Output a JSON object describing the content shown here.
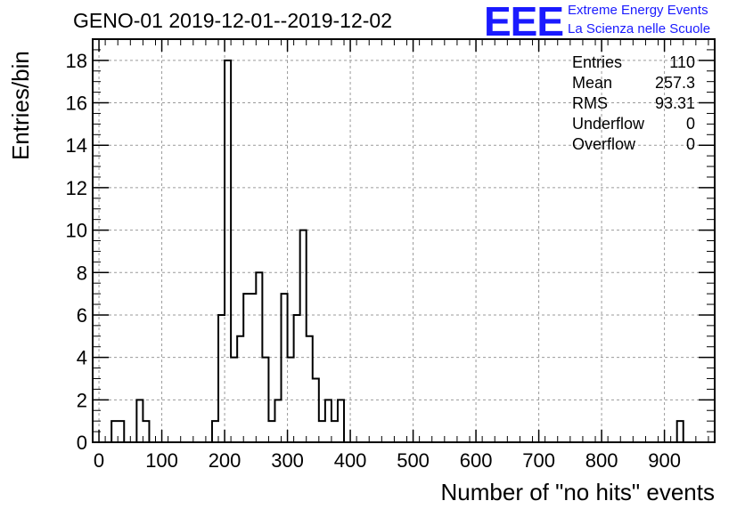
{
  "title": "GENO-01 2019-12-01--2019-12-02",
  "logo": {
    "mark": "EEE",
    "line1": "Extreme Energy Events",
    "line2": "La Scienza nelle Scuole"
  },
  "stats": [
    {
      "label": "Entries",
      "value": "110"
    },
    {
      "label": "Mean",
      "value": "257.3"
    },
    {
      "label": "RMS",
      "value": "93.31"
    },
    {
      "label": "Underflow",
      "value": "0"
    },
    {
      "label": "Overflow",
      "value": "0"
    }
  ],
  "chart_data": {
    "type": "bar",
    "subtype": "step-histogram",
    "title": "GENO-01 2019-12-01--2019-12-02",
    "xlabel": "Number of \"no hits\" events",
    "ylabel": "Entries/bin",
    "xlim": [
      -10,
      980
    ],
    "ylim": [
      0,
      19
    ],
    "bin_width": 10,
    "x_ticks": [
      0,
      100,
      200,
      300,
      400,
      500,
      600,
      700,
      800,
      900
    ],
    "y_ticks": [
      0,
      2,
      4,
      6,
      8,
      10,
      12,
      14,
      16,
      18
    ],
    "grid": true,
    "bins": [
      {
        "x": 20,
        "count": 1
      },
      {
        "x": 30,
        "count": 1
      },
      {
        "x": 60,
        "count": 2
      },
      {
        "x": 70,
        "count": 1
      },
      {
        "x": 180,
        "count": 1
      },
      {
        "x": 190,
        "count": 6
      },
      {
        "x": 200,
        "count": 18
      },
      {
        "x": 210,
        "count": 4
      },
      {
        "x": 220,
        "count": 5
      },
      {
        "x": 230,
        "count": 7
      },
      {
        "x": 240,
        "count": 7
      },
      {
        "x": 250,
        "count": 8
      },
      {
        "x": 260,
        "count": 4
      },
      {
        "x": 270,
        "count": 1
      },
      {
        "x": 280,
        "count": 2
      },
      {
        "x": 290,
        "count": 7
      },
      {
        "x": 300,
        "count": 4
      },
      {
        "x": 310,
        "count": 6
      },
      {
        "x": 320,
        "count": 10
      },
      {
        "x": 330,
        "count": 5
      },
      {
        "x": 340,
        "count": 3
      },
      {
        "x": 350,
        "count": 1
      },
      {
        "x": 360,
        "count": 2
      },
      {
        "x": 370,
        "count": 1
      },
      {
        "x": 380,
        "count": 2
      },
      {
        "x": 920,
        "count": 1
      }
    ]
  }
}
